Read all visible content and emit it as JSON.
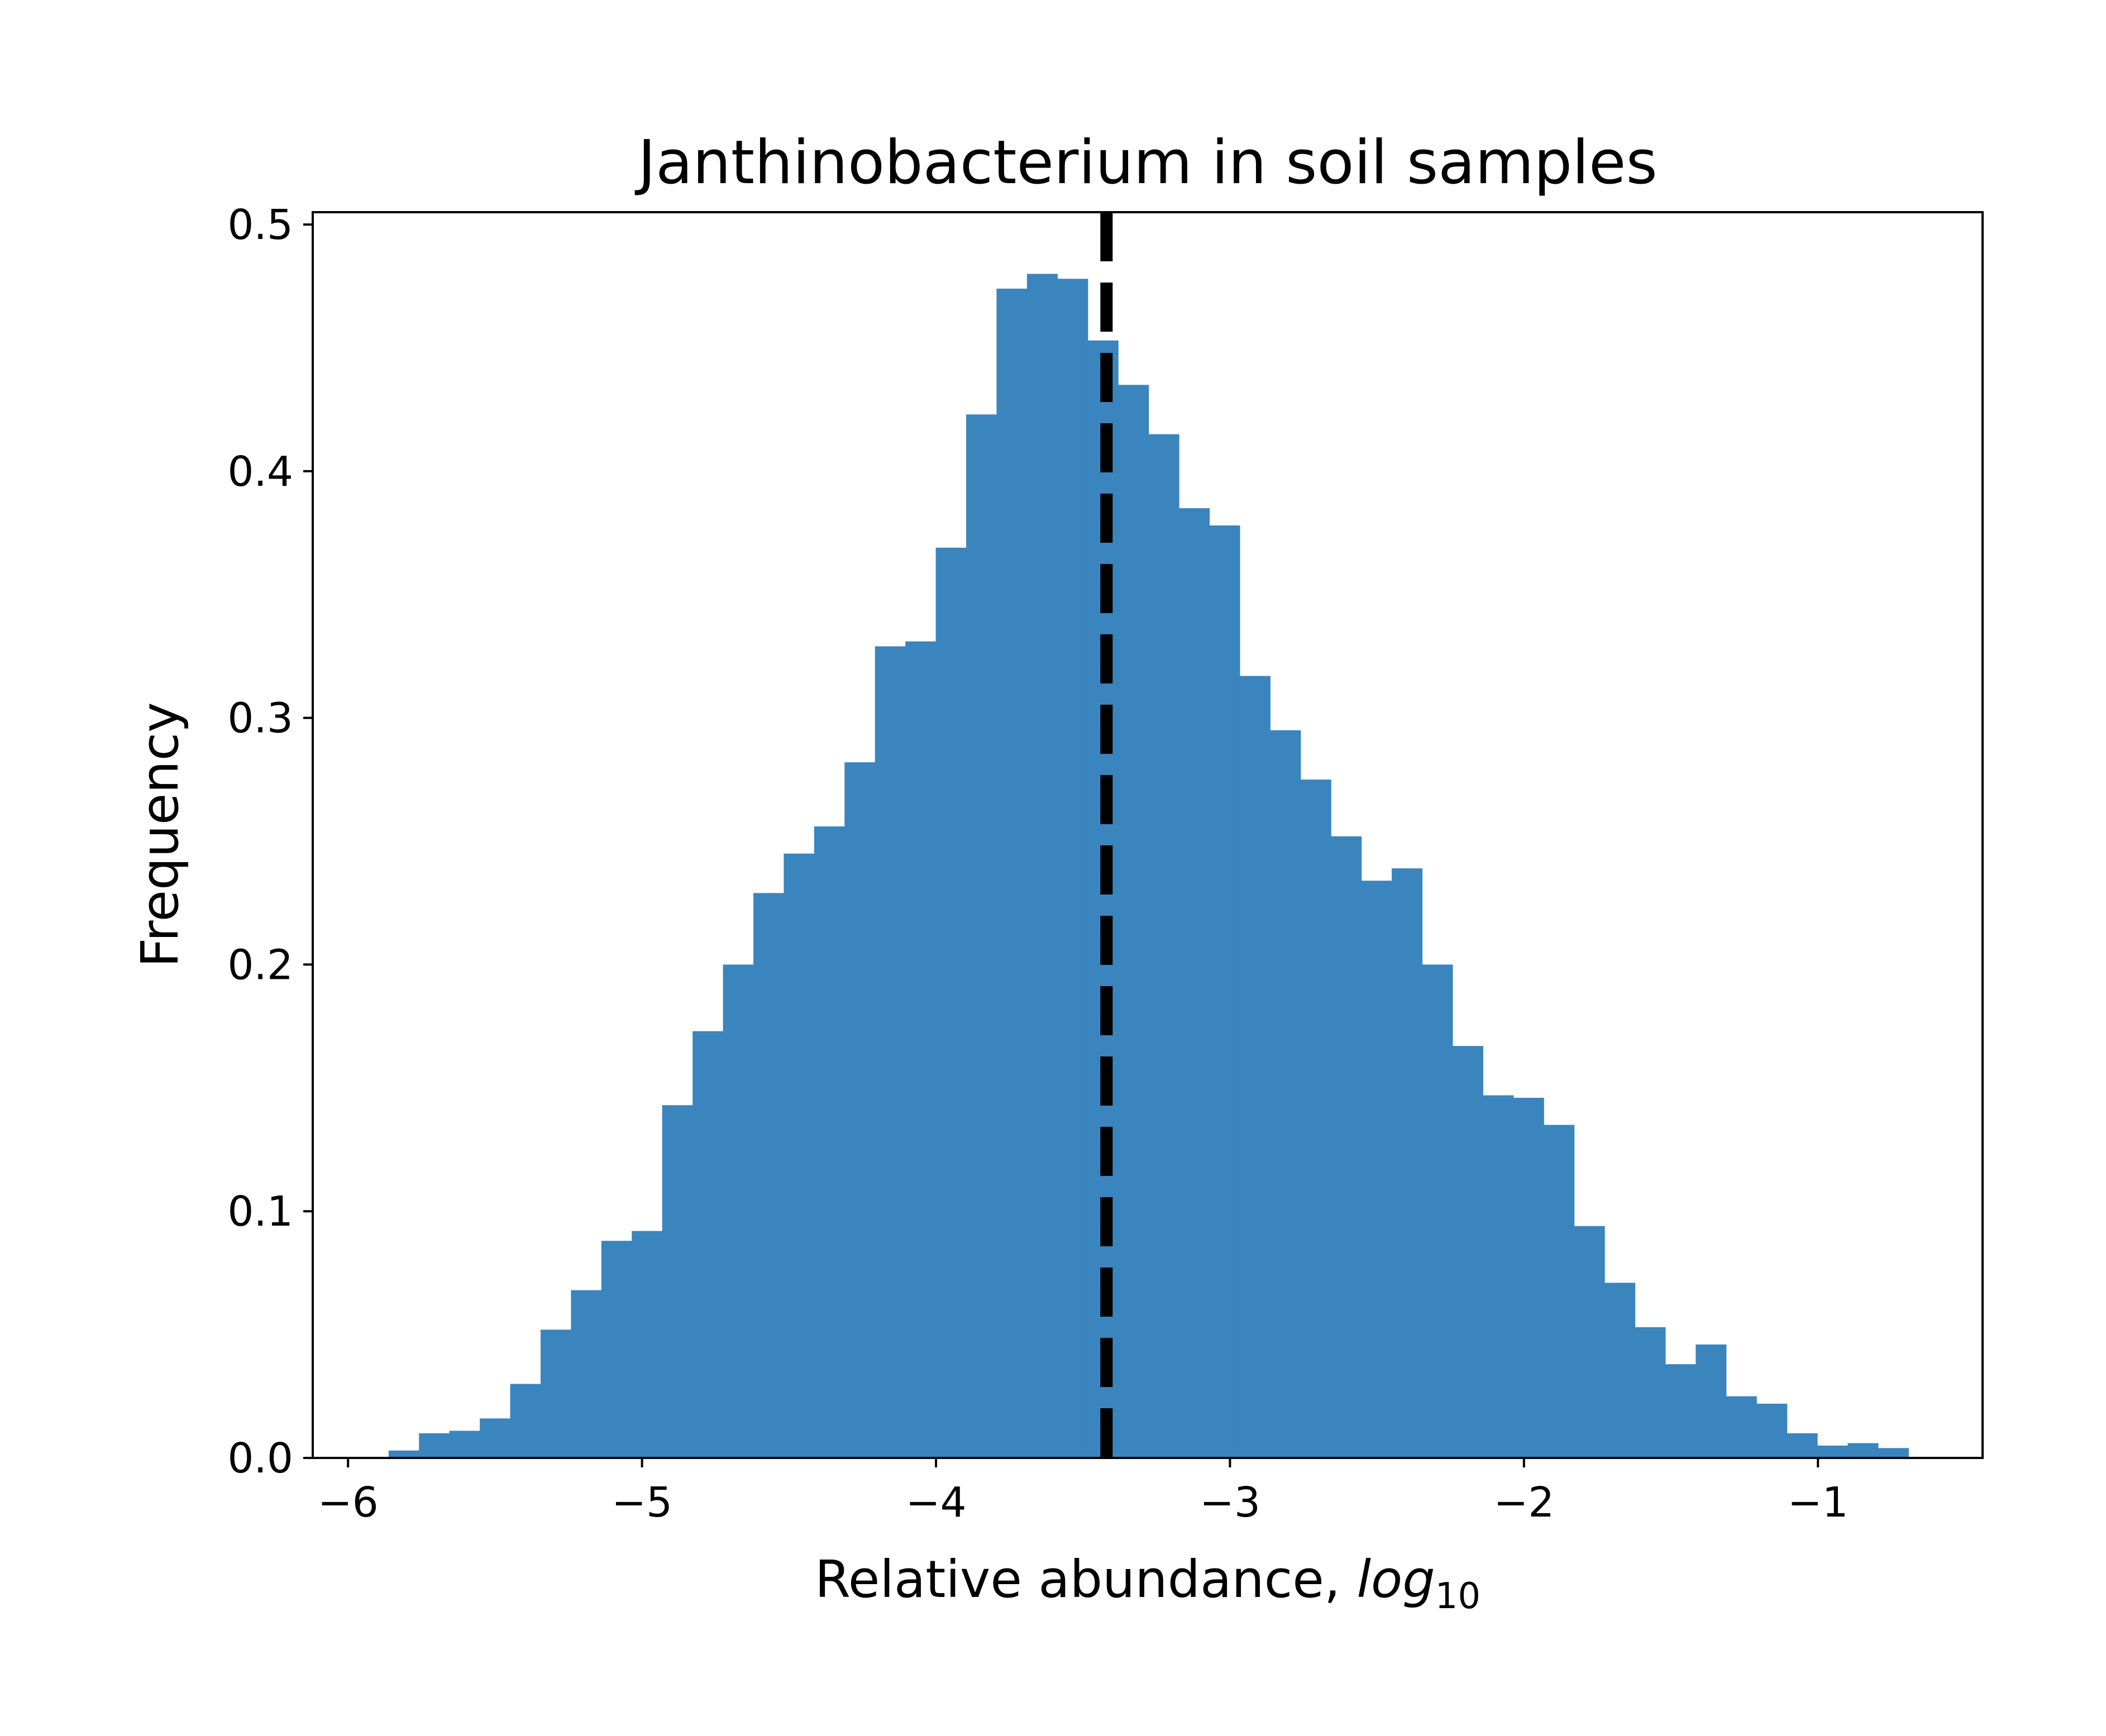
{
  "chart_data": {
    "type": "bar",
    "subtype": "histogram",
    "title": "Janthinobacterium in soil samples",
    "xlabel": "Relative abundance, ",
    "xlabel_italic": "log",
    "xlabel_subscript": "10",
    "ylabel": "Frequency",
    "xlim": [
      -6.12,
      -0.44
    ],
    "ylim": [
      0,
      0.505
    ],
    "xticks": [
      -6,
      -5,
      -4,
      -3,
      -2,
      -1
    ],
    "xtick_labels": [
      "−6",
      "−5",
      "−4",
      "−3",
      "−2",
      "−1"
    ],
    "yticks": [
      0,
      0.1,
      0.2,
      0.3,
      0.4,
      0.5
    ],
    "ytick_labels": [
      "0.0",
      "0.1",
      "0.2",
      "0.3",
      "0.4",
      "0.5"
    ],
    "grid": false,
    "bar_color": "#3a85bd",
    "bin_start": -5.862,
    "bin_width": 0.1034,
    "values": [
      0.003,
      0.01,
      0.011,
      0.016,
      0.03,
      0.052,
      0.068,
      0.088,
      0.092,
      0.143,
      0.173,
      0.2,
      0.229,
      0.245,
      0.256,
      0.282,
      0.329,
      0.331,
      0.369,
      0.423,
      0.474,
      0.48,
      0.478,
      0.453,
      0.435,
      0.415,
      0.385,
      0.378,
      0.317,
      0.295,
      0.275,
      0.252,
      0.234,
      0.239,
      0.2,
      0.167,
      0.147,
      0.146,
      0.135,
      0.094,
      0.071,
      0.053,
      0.038,
      0.046,
      0.025,
      0.022,
      0.01,
      0.005,
      0.006,
      0.004
    ],
    "reference_line": {
      "x": -3.42,
      "style": "dashed",
      "color": "#000000"
    }
  }
}
